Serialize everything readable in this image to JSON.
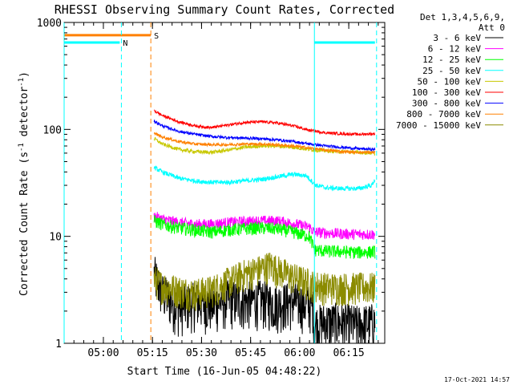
{
  "chart_data": {
    "type": "line",
    "title": "RHESSI Observing Summary Count Rates, Corrected",
    "xlabel": "Start Time (16-Jun-05 04:48:22)",
    "ylabel_main": "Corrected Count Rate (s",
    "ylabel_sup1": "-1",
    "ylabel_mid": " detector",
    "ylabel_sup2": "-1",
    "ylabel_end": ")",
    "yscale": "log",
    "ylim": [
      1,
      1000
    ],
    "xlim_minutes": [
      0,
      98
    ],
    "x_ticks": [
      {
        "m": 12,
        "label": "05:00"
      },
      {
        "m": 27,
        "label": "05:15"
      },
      {
        "m": 42,
        "label": "05:30"
      },
      {
        "m": 57,
        "label": "05:45"
      },
      {
        "m": 72,
        "label": "06:00"
      },
      {
        "m": 87,
        "label": "06:15"
      }
    ],
    "y_ticks": [
      {
        "v": 1,
        "label": "1"
      },
      {
        "v": 10,
        "label": "10"
      },
      {
        "v": 100,
        "label": "100"
      },
      {
        "v": 1000,
        "label": "1000"
      }
    ],
    "legend_header": [
      "Det 1,3,4,5,6,9,",
      "Att 0"
    ],
    "series": [
      {
        "name": "3 - 6 keV",
        "color": "#000000",
        "points": [
          [
            27.5,
            4.5
          ],
          [
            30,
            3.0
          ],
          [
            35,
            2.2
          ],
          [
            40,
            2.5
          ],
          [
            45,
            2.3
          ],
          [
            50,
            2.6
          ],
          [
            55,
            2.5
          ],
          [
            60,
            2.6
          ],
          [
            65,
            2.4
          ],
          [
            70,
            2.5
          ],
          [
            76,
            2.3
          ],
          [
            76.5,
            1.5
          ],
          [
            80,
            1.6
          ],
          [
            85,
            1.6
          ],
          [
            90,
            1.5
          ],
          [
            95,
            1.6
          ]
        ],
        "noise": 0.5
      },
      {
        "name": "6 - 12 keV",
        "color": "#ff00ff",
        "points": [
          [
            27.5,
            15.5
          ],
          [
            30,
            14.5
          ],
          [
            35,
            13.5
          ],
          [
            40,
            13.0
          ],
          [
            45,
            13.0
          ],
          [
            50,
            13.5
          ],
          [
            55,
            13.8
          ],
          [
            60,
            14.0
          ],
          [
            65,
            14.0
          ],
          [
            70,
            13.2
          ],
          [
            75,
            12.2
          ],
          [
            76.5,
            11.0
          ],
          [
            80,
            10.8
          ],
          [
            85,
            10.6
          ],
          [
            90,
            10.5
          ],
          [
            95,
            10.5
          ]
        ],
        "noise": 0.12
      },
      {
        "name": "12 - 25 keV",
        "color": "#00ff00",
        "points": [
          [
            27.5,
            14.0
          ],
          [
            30,
            13.0
          ],
          [
            35,
            12.0
          ],
          [
            40,
            11.5
          ],
          [
            45,
            11.0
          ],
          [
            50,
            11.5
          ],
          [
            55,
            11.8
          ],
          [
            60,
            12.0
          ],
          [
            65,
            11.8
          ],
          [
            70,
            11.0
          ],
          [
            75,
            10.0
          ],
          [
            76.5,
            7.5
          ],
          [
            80,
            7.3
          ],
          [
            85,
            7.2
          ],
          [
            90,
            7.1
          ],
          [
            95,
            7.2
          ]
        ],
        "noise": 0.14
      },
      {
        "name": "25 - 50 keV",
        "color": "#00ffff",
        "points": [
          [
            27.5,
            44
          ],
          [
            30,
            40
          ],
          [
            35,
            35
          ],
          [
            40,
            33
          ],
          [
            45,
            32
          ],
          [
            50,
            32
          ],
          [
            55,
            33
          ],
          [
            60,
            34
          ],
          [
            65,
            36
          ],
          [
            70,
            38
          ],
          [
            74,
            37
          ],
          [
            77,
            30
          ],
          [
            80,
            28.5
          ],
          [
            85,
            28
          ],
          [
            90,
            28
          ],
          [
            94,
            30
          ],
          [
            95,
            34
          ]
        ],
        "noise": 0.05
      },
      {
        "name": "50 - 100 keV",
        "color": "#c8c800",
        "points": [
          [
            27.5,
            82
          ],
          [
            30,
            73
          ],
          [
            35,
            65
          ],
          [
            40,
            62
          ],
          [
            45,
            61
          ],
          [
            50,
            64
          ],
          [
            55,
            68
          ],
          [
            60,
            70
          ],
          [
            65,
            70
          ],
          [
            70,
            68
          ],
          [
            75,
            65
          ],
          [
            80,
            63
          ],
          [
            85,
            62
          ],
          [
            90,
            61
          ],
          [
            95,
            60
          ]
        ],
        "noise": 0.04
      },
      {
        "name": "100 - 300 keV",
        "color": "#ff0000",
        "points": [
          [
            27.5,
            150
          ],
          [
            30,
            135
          ],
          [
            35,
            118
          ],
          [
            40,
            108
          ],
          [
            45,
            104
          ],
          [
            50,
            110
          ],
          [
            55,
            116
          ],
          [
            60,
            118
          ],
          [
            65,
            115
          ],
          [
            70,
            108
          ],
          [
            75,
            98
          ],
          [
            80,
            93
          ],
          [
            85,
            91
          ],
          [
            90,
            90
          ],
          [
            95,
            91
          ]
        ],
        "noise": 0.03
      },
      {
        "name": "300 - 800 keV",
        "color": "#0000ff",
        "points": [
          [
            27.5,
            120
          ],
          [
            30,
            108
          ],
          [
            35,
            96
          ],
          [
            40,
            90
          ],
          [
            45,
            86
          ],
          [
            50,
            84
          ],
          [
            55,
            83
          ],
          [
            60,
            82
          ],
          [
            65,
            80
          ],
          [
            70,
            77
          ],
          [
            75,
            73
          ],
          [
            80,
            70
          ],
          [
            85,
            68
          ],
          [
            90,
            66
          ],
          [
            95,
            65
          ]
        ],
        "noise": 0.03
      },
      {
        "name": "800 - 7000 keV",
        "color": "#ff8000",
        "points": [
          [
            27.5,
            92
          ],
          [
            30,
            85
          ],
          [
            35,
            77
          ],
          [
            40,
            73
          ],
          [
            45,
            72
          ],
          [
            50,
            72
          ],
          [
            55,
            73
          ],
          [
            60,
            73
          ],
          [
            65,
            72
          ],
          [
            70,
            70
          ],
          [
            75,
            67
          ],
          [
            80,
            64
          ],
          [
            85,
            62
          ],
          [
            90,
            61
          ],
          [
            95,
            61
          ]
        ],
        "noise": 0.03
      },
      {
        "name": "7000 - 15000 keV",
        "color": "#8b8b00",
        "points": [
          [
            27.5,
            4.0
          ],
          [
            30,
            3.5
          ],
          [
            35,
            3.2
          ],
          [
            40,
            3.0
          ],
          [
            45,
            3.2
          ],
          [
            50,
            3.8
          ],
          [
            55,
            4.5
          ],
          [
            60,
            5.0
          ],
          [
            63,
            5.5
          ],
          [
            65,
            5.0
          ],
          [
            70,
            4.2
          ],
          [
            76,
            3.6
          ],
          [
            80,
            3.4
          ],
          [
            85,
            3.4
          ],
          [
            90,
            3.4
          ],
          [
            95,
            3.4
          ]
        ],
        "noise": 0.35
      }
    ],
    "state_flags": [
      {
        "label": "N",
        "color": "#00ffff",
        "level": 650,
        "segments": [
          [
            0,
            17
          ],
          [
            76.5,
            95
          ]
        ]
      },
      {
        "label": "S",
        "color": "#ff8000",
        "level": 760,
        "segments": [
          [
            0,
            26.5
          ]
        ]
      }
    ],
    "vlines": [
      {
        "m": 0,
        "color": "#00ffff",
        "solid": true
      },
      {
        "m": 17.5,
        "color": "#00ffff",
        "solid": false
      },
      {
        "m": 26.5,
        "color": "#ff8000",
        "solid": false
      },
      {
        "m": 76.5,
        "color": "#00ffff",
        "solid": true
      },
      {
        "m": 95.5,
        "color": "#00ffff",
        "solid": false
      }
    ],
    "footer_timestamp": "17-Oct-2021 14:57"
  }
}
